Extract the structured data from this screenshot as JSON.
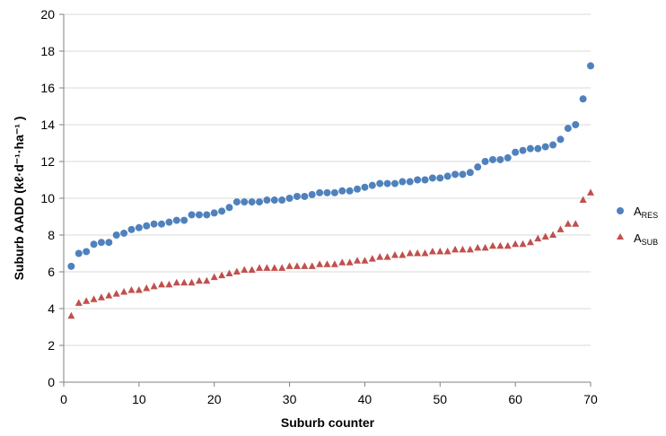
{
  "chart_data": {
    "type": "scatter",
    "xlabel": "Suburb counter",
    "ylabel": "Suburb AADD (kℓ·d⁻¹·ha⁻¹ )",
    "xlim": [
      0,
      70
    ],
    "ylim": [
      0,
      20
    ],
    "x_ticks": [
      "0",
      "10",
      "20",
      "30",
      "40",
      "50",
      "60",
      "70"
    ],
    "y_ticks": [
      "0",
      "2",
      "4",
      "6",
      "8",
      "10",
      "12",
      "14",
      "16",
      "18",
      "20"
    ],
    "grid": "horizontal",
    "legend_position": "right",
    "series": [
      {
        "name": "A_RES",
        "legend_main": "A",
        "legend_sub": "RES",
        "marker": "circle",
        "color": "#4F81BD",
        "x": [
          1,
          2,
          3,
          4,
          5,
          6,
          7,
          8,
          9,
          10,
          11,
          12,
          13,
          14,
          15,
          16,
          17,
          18,
          19,
          20,
          21,
          22,
          23,
          24,
          25,
          26,
          27,
          28,
          29,
          30,
          31,
          32,
          33,
          34,
          35,
          36,
          37,
          38,
          39,
          40,
          41,
          42,
          43,
          44,
          45,
          46,
          47,
          48,
          49,
          50,
          51,
          52,
          53,
          54,
          55,
          56,
          57,
          58,
          59,
          60,
          61,
          62,
          63,
          64,
          65,
          66,
          67,
          68,
          69,
          70
        ],
        "y": [
          6.3,
          7.0,
          7.1,
          7.5,
          7.6,
          7.6,
          8.0,
          8.1,
          8.3,
          8.4,
          8.5,
          8.6,
          8.6,
          8.7,
          8.8,
          8.8,
          9.1,
          9.1,
          9.1,
          9.2,
          9.3,
          9.5,
          9.8,
          9.8,
          9.8,
          9.8,
          9.9,
          9.9,
          9.9,
          10.0,
          10.1,
          10.1,
          10.2,
          10.3,
          10.3,
          10.3,
          10.4,
          10.4,
          10.5,
          10.6,
          10.7,
          10.8,
          10.8,
          10.8,
          10.9,
          10.9,
          11.0,
          11.0,
          11.1,
          11.1,
          11.2,
          11.3,
          11.3,
          11.4,
          11.7,
          12.0,
          12.1,
          12.1,
          12.2,
          12.5,
          12.6,
          12.7,
          12.7,
          12.8,
          12.9,
          13.2,
          13.8,
          14.0,
          15.4,
          17.2
        ]
      },
      {
        "name": "A_SUB",
        "legend_main": "A",
        "legend_sub": "SUB",
        "marker": "triangle",
        "color": "#C0504D",
        "x": [
          1,
          2,
          3,
          4,
          5,
          6,
          7,
          8,
          9,
          10,
          11,
          12,
          13,
          14,
          15,
          16,
          17,
          18,
          19,
          20,
          21,
          22,
          23,
          24,
          25,
          26,
          27,
          28,
          29,
          30,
          31,
          32,
          33,
          34,
          35,
          36,
          37,
          38,
          39,
          40,
          41,
          42,
          43,
          44,
          45,
          46,
          47,
          48,
          49,
          50,
          51,
          52,
          53,
          54,
          55,
          56,
          57,
          58,
          59,
          60,
          61,
          62,
          63,
          64,
          65,
          66,
          67,
          68,
          69,
          70
        ],
        "y": [
          3.6,
          4.3,
          4.4,
          4.5,
          4.6,
          4.7,
          4.8,
          4.9,
          5.0,
          5.0,
          5.1,
          5.2,
          5.3,
          5.3,
          5.4,
          5.4,
          5.4,
          5.5,
          5.5,
          5.7,
          5.8,
          5.9,
          6.0,
          6.1,
          6.1,
          6.2,
          6.2,
          6.2,
          6.2,
          6.3,
          6.3,
          6.3,
          6.3,
          6.4,
          6.4,
          6.4,
          6.5,
          6.5,
          6.6,
          6.6,
          6.7,
          6.8,
          6.8,
          6.9,
          6.9,
          7.0,
          7.0,
          7.0,
          7.1,
          7.1,
          7.1,
          7.2,
          7.2,
          7.2,
          7.3,
          7.3,
          7.4,
          7.4,
          7.4,
          7.5,
          7.5,
          7.6,
          7.8,
          7.9,
          8.0,
          8.3,
          8.6,
          8.6,
          9.9,
          10.3
        ]
      }
    ]
  }
}
